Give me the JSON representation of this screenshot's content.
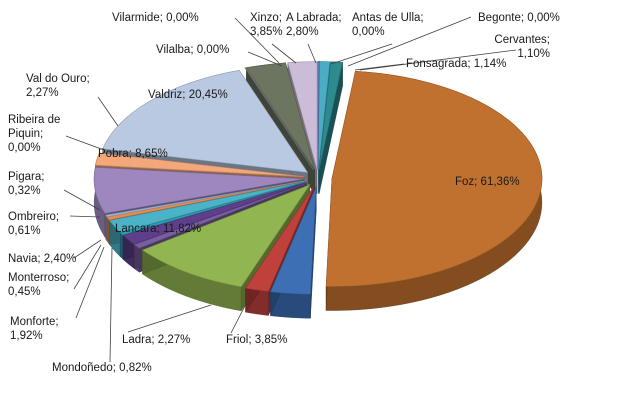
{
  "chart_data": {
    "type": "pie",
    "variant": "3d-exploded",
    "title": "",
    "legend": "none",
    "slices": [
      {
        "label": "Begonte",
        "value": 0.0,
        "display": "0,00%",
        "color": "#4a6fa8"
      },
      {
        "label": "Cervantes",
        "value": 1.1,
        "display": "1,10%",
        "color": "#4bacc6"
      },
      {
        "label": "Fonsagrada",
        "value": 1.14,
        "display": "1,14%",
        "color": "#2d8a8f"
      },
      {
        "label": "Foz",
        "value": 61.36,
        "display": "61,36%",
        "color": "#c0712f"
      },
      {
        "label": "Friol",
        "value": 3.85,
        "display": "3,85%",
        "color": "#3d6fb5"
      },
      {
        "label": "Ladra",
        "value": 2.27,
        "display": "2,27%",
        "color": "#c0403c"
      },
      {
        "label": "Lancara",
        "value": 11.82,
        "display": "11,82%",
        "color": "#91b550"
      },
      {
        "label": "Mondoñedo",
        "value": 0.82,
        "display": "0,82%",
        "color": "#7a5fa0"
      },
      {
        "label": "Monforte",
        "value": 1.92,
        "display": "1,92%",
        "color": "#5f3f8c"
      },
      {
        "label": "Monterroso",
        "value": 0.45,
        "display": "0,45%",
        "color": "#2f9fb5"
      },
      {
        "label": "Navia",
        "value": 2.4,
        "display": "2,40%",
        "color": "#4bb3c7"
      },
      {
        "label": "Ombreiro",
        "value": 0.61,
        "display": "0,61%",
        "color": "#e88a4a"
      },
      {
        "label": "Pigara",
        "value": 0.32,
        "display": "0,32%",
        "color": "#9db6dc"
      },
      {
        "label": "Pobra",
        "value": 8.65,
        "display": "8,65%",
        "color": "#9e87bf"
      },
      {
        "label": "Ribeira de Piquin",
        "value": 0.0,
        "display": "0,00%",
        "color": "#c89a74"
      },
      {
        "label": "Val do Ouro",
        "value": 2.27,
        "display": "2,27%",
        "color": "#f4a77a"
      },
      {
        "label": "Valdriz",
        "value": 20.45,
        "display": "20,45%",
        "color": "#b9c9e1"
      },
      {
        "label": "Vilalba",
        "value": 0.0,
        "display": "0,00%",
        "color": "#8a9bbf"
      },
      {
        "label": "Vilarmide",
        "value": 0.0,
        "display": "0,00%",
        "color": "#7f7f7f"
      },
      {
        "label": "Xinzo",
        "value": 3.85,
        "display": "3,85%",
        "color": "#6b7560"
      },
      {
        "label": "A Labrada",
        "value": 2.8,
        "display": "2,80%",
        "color": "#cbbcd8"
      },
      {
        "label": "Antas de Ulla",
        "value": 0.0,
        "display": "0,00%",
        "color": "#5b7fb5"
      }
    ]
  }
}
